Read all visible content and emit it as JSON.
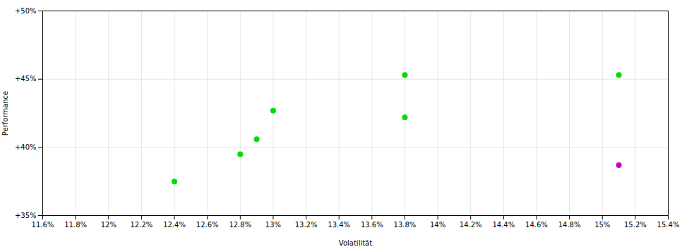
{
  "chart_data": {
    "type": "scatter",
    "xlabel": "Volatilität",
    "ylabel": "Performance",
    "xlim": [
      11.6,
      15.4
    ],
    "ylim": [
      35.0,
      50.0
    ],
    "xticks": [
      {
        "value": 11.6,
        "label": "11.6%"
      },
      {
        "value": 11.8,
        "label": "11.8%"
      },
      {
        "value": 12.0,
        "label": "12%"
      },
      {
        "value": 12.2,
        "label": "12.2%"
      },
      {
        "value": 12.4,
        "label": "12.4%"
      },
      {
        "value": 12.6,
        "label": "12.6%"
      },
      {
        "value": 12.8,
        "label": "12.8%"
      },
      {
        "value": 13.0,
        "label": "13%"
      },
      {
        "value": 13.2,
        "label": "13.2%"
      },
      {
        "value": 13.4,
        "label": "13.4%"
      },
      {
        "value": 13.6,
        "label": "13.6%"
      },
      {
        "value": 13.8,
        "label": "13.8%"
      },
      {
        "value": 14.0,
        "label": "14%"
      },
      {
        "value": 14.2,
        "label": "14.2%"
      },
      {
        "value": 14.4,
        "label": "14.4%"
      },
      {
        "value": 14.6,
        "label": "14.6%"
      },
      {
        "value": 14.8,
        "label": "14.8%"
      },
      {
        "value": 15.0,
        "label": "15%"
      },
      {
        "value": 15.2,
        "label": "15.2%"
      },
      {
        "value": 15.4,
        "label": "15.4%"
      }
    ],
    "yticks": [
      {
        "value": 35,
        "label": "+35%"
      },
      {
        "value": 40,
        "label": "+40%"
      },
      {
        "value": 45,
        "label": "+45%"
      },
      {
        "value": 50,
        "label": "+50%"
      }
    ],
    "grid": true,
    "series": [
      {
        "color": "#00dd00",
        "x": [
          12.4,
          12.8,
          12.9,
          13.0,
          13.8,
          13.8,
          15.1
        ],
        "values": [
          37.5,
          39.5,
          40.6,
          42.7,
          42.2,
          45.3,
          45.3
        ]
      },
      {
        "color": "#cc00cc",
        "x": [
          15.1
        ],
        "values": [
          38.7
        ]
      }
    ]
  }
}
